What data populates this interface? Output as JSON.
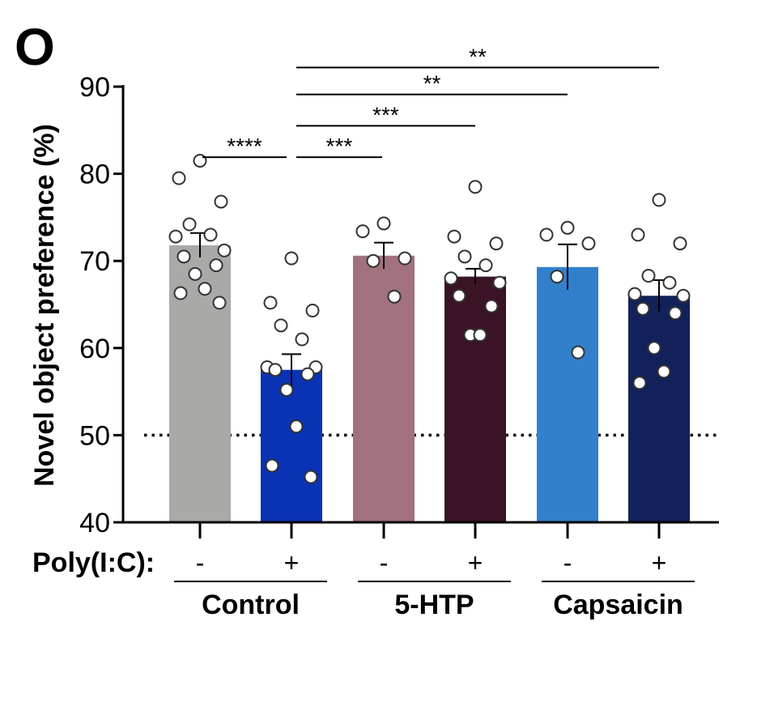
{
  "panel_label": "O",
  "row_label": "Poly(I:C):",
  "colors": {
    "axis": "#000000",
    "dot_fill": "#ffffff",
    "dot_stroke": "#333333"
  },
  "chart_data": {
    "type": "bar",
    "ylabel": "Novel object preference (%)",
    "ylim": [
      40,
      90
    ],
    "yticks": [
      40,
      50,
      60,
      70,
      80,
      90
    ],
    "chance_line": 50,
    "grid": false,
    "bars": [
      {
        "sign": "-",
        "group": "Control",
        "mean": 71.8,
        "sem": 1.4,
        "color": "#a9a9a7",
        "points": [
          81.5,
          79.5,
          76.8,
          74.2,
          73.0,
          72.8,
          71.2,
          70.5,
          69.5,
          68.5,
          66.8,
          66.3,
          65.2
        ]
      },
      {
        "sign": "+",
        "group": "Control",
        "mean": 57.5,
        "sem": 1.8,
        "color": "#0a32b4",
        "points": [
          70.3,
          65.2,
          64.3,
          62.6,
          61.0,
          57.8,
          57.8,
          57.5,
          57.0,
          55.2,
          51.0,
          46.5,
          45.2
        ]
      },
      {
        "sign": "-",
        "group": "5-HTP",
        "mean": 70.6,
        "sem": 1.5,
        "color": "#a1717d",
        "points": [
          74.3,
          73.4,
          70.3,
          70.0,
          65.9
        ]
      },
      {
        "sign": "+",
        "group": "5-HTP",
        "mean": 68.2,
        "sem": 0.9,
        "color": "#3a1426",
        "points": [
          78.5,
          72.8,
          72.0,
          70.5,
          69.5,
          68.0,
          67.5,
          66.0,
          64.8,
          61.5,
          61.5
        ]
      },
      {
        "sign": "-",
        "group": "Capsaicin",
        "mean": 69.3,
        "sem": 2.6,
        "color": "#3280cc",
        "points": [
          73.8,
          73.0,
          72.0,
          68.2,
          59.5
        ]
      },
      {
        "sign": "+",
        "group": "Capsaicin",
        "mean": 66.0,
        "sem": 1.8,
        "color": "#13215a",
        "points": [
          77.0,
          73.0,
          72.0,
          68.3,
          67.5,
          66.2,
          66.0,
          64.5,
          64.0,
          60.0,
          57.3,
          56.0
        ]
      }
    ],
    "groups": [
      {
        "label": "Control",
        "bars": [
          0,
          1
        ]
      },
      {
        "label": "5-HTP",
        "bars": [
          2,
          3
        ]
      },
      {
        "label": "Capsaicin",
        "bars": [
          4,
          5
        ]
      }
    ],
    "significance": [
      {
        "from": 0,
        "to": 1,
        "label": "****",
        "y": 81.9
      },
      {
        "from": 1,
        "to": 2,
        "label": "***",
        "y": 81.9
      },
      {
        "from": 1,
        "to": 3,
        "label": "***",
        "y": 85.5
      },
      {
        "from": 1,
        "to": 4,
        "label": "**",
        "y": 89.1
      },
      {
        "from": 1,
        "to": 5,
        "label": "**",
        "y": 92.2
      }
    ]
  }
}
